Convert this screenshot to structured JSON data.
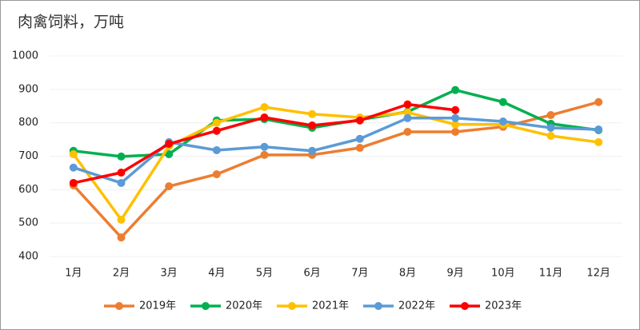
{
  "chart_data": {
    "type": "line",
    "title": "肉禽饲料，万吨",
    "categories": [
      "1月",
      "2月",
      "3月",
      "4月",
      "5月",
      "6月",
      "7月",
      "8月",
      "9月",
      "10月",
      "11月",
      "12月"
    ],
    "series": [
      {
        "name": "2019年",
        "color": "#ED7D31",
        "values": [
          613,
          457,
          610,
          646,
          704,
          704,
          725,
          773,
          773,
          788,
          823,
          862
        ]
      },
      {
        "name": "2020年",
        "color": "#00B050",
        "values": [
          716,
          699,
          706,
          807,
          811,
          785,
          809,
          833,
          898,
          862,
          797,
          778
        ]
      },
      {
        "name": "2021年",
        "color": "#FFC000",
        "values": [
          706,
          510,
          730,
          800,
          847,
          826,
          816,
          831,
          795,
          795,
          761,
          742
        ]
      },
      {
        "name": "2022年",
        "color": "#5B9BD5",
        "values": [
          666,
          620,
          742,
          718,
          728,
          716,
          752,
          814,
          814,
          804,
          785,
          780
        ]
      },
      {
        "name": "2023年",
        "color": "#FF0000",
        "values": [
          620,
          651,
          737,
          776,
          816,
          792,
          807,
          855,
          838,
          null,
          null,
          null
        ]
      }
    ],
    "ylim": [
      400,
      1000
    ],
    "yticks": [
      400,
      500,
      600,
      700,
      800,
      900,
      1000
    ],
    "grid": true,
    "legend": "bottom"
  }
}
